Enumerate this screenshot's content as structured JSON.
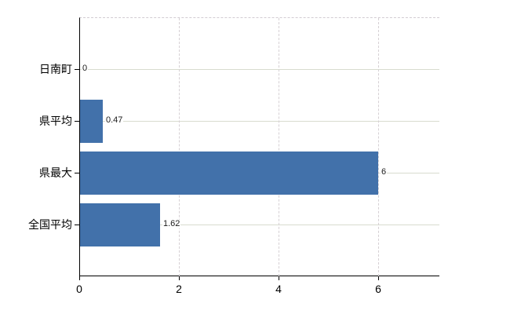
{
  "chart_data": {
    "type": "bar",
    "orientation": "horizontal",
    "title": "",
    "xlabel": "",
    "ylabel": "",
    "categories": [
      "日南町",
      "県平均",
      "県最大",
      "全国平均"
    ],
    "values": [
      0,
      0.47,
      6,
      1.62
    ],
    "value_labels": [
      "0",
      "0.47",
      "6",
      "1.62"
    ],
    "xticks": [
      0,
      2,
      4,
      6
    ],
    "xtick_labels": [
      "0",
      "2",
      "4",
      "6"
    ],
    "xlim": [
      0,
      7.23
    ],
    "grid": true,
    "legend": "none",
    "colors": {
      "bar": "#4271aa",
      "axis": "#000000",
      "h_gridline": "#d8dccf",
      "v_gridline": "#d6d0d4",
      "text": "#000000"
    }
  }
}
